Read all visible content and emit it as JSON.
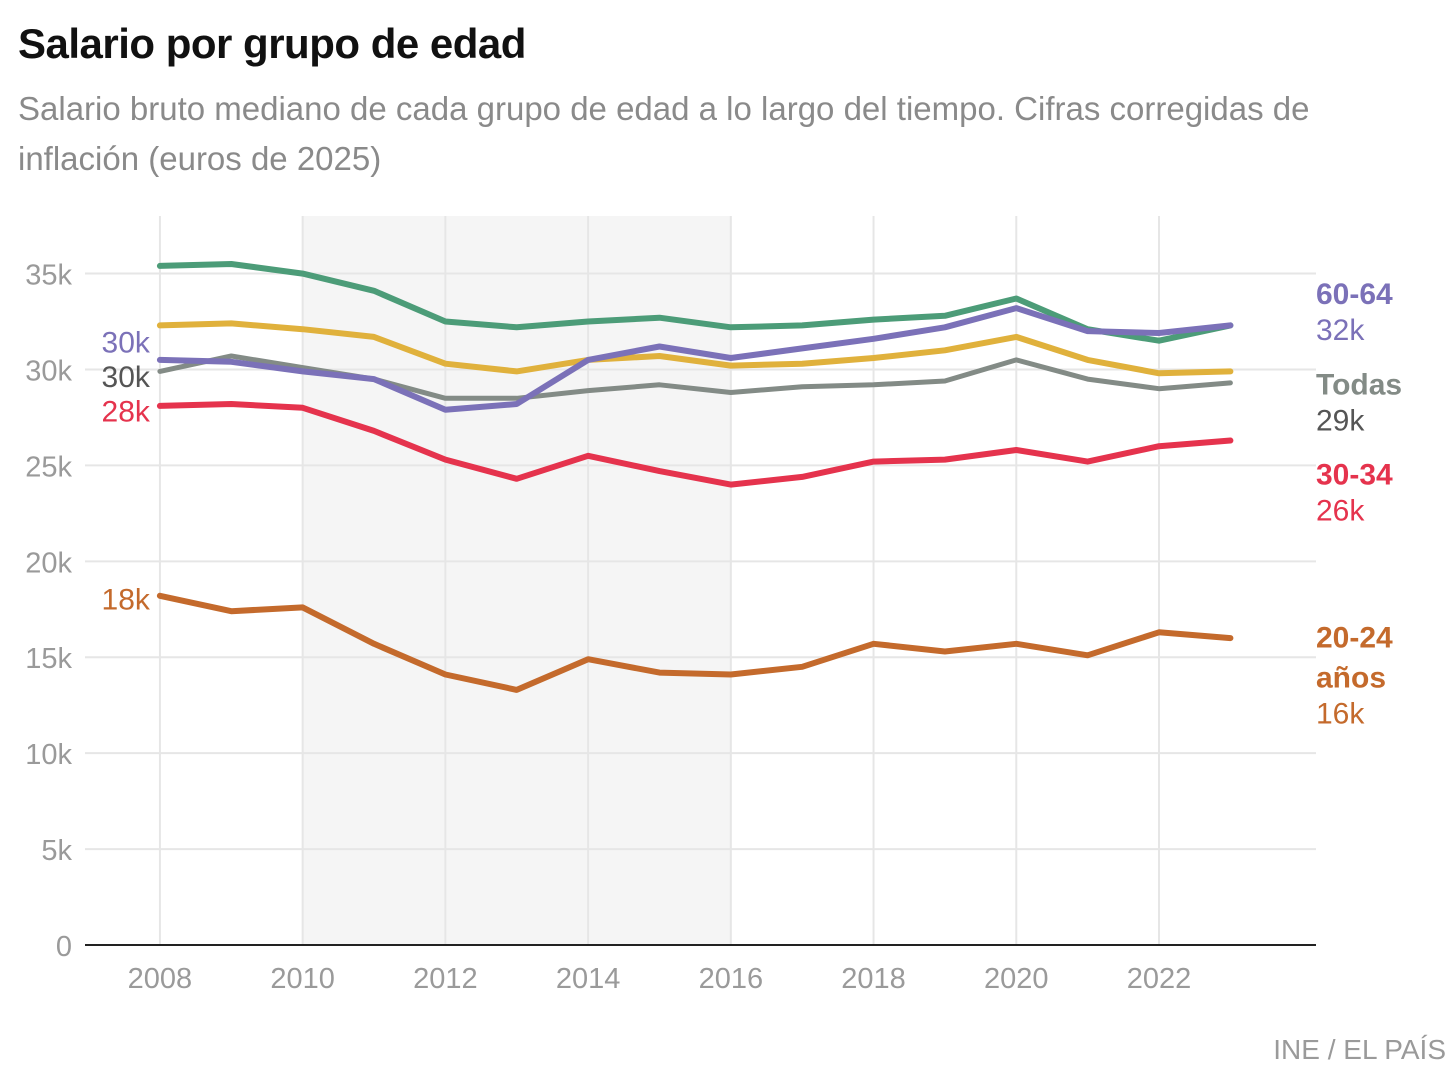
{
  "header": {
    "title": "Salario por grupo de edad",
    "subtitle": "Salario bruto mediano de cada grupo de edad a lo largo del tiempo. Cifras corregidas de inflación (euros de 2025)"
  },
  "source": "INE / EL PAÍS",
  "chart_data": {
    "type": "line",
    "x": [
      2008,
      2009,
      2010,
      2011,
      2012,
      2013,
      2014,
      2015,
      2016,
      2017,
      2018,
      2019,
      2020,
      2021,
      2022,
      2023
    ],
    "xticks": [
      2008,
      2010,
      2012,
      2014,
      2016,
      2018,
      2020,
      2022
    ],
    "xtick_labels": [
      "2008",
      "2010",
      "2012",
      "2014",
      "2016",
      "2018",
      "2020",
      "2022"
    ],
    "xlim": [
      2006.95,
      2024.2
    ],
    "ylim": [
      0,
      38000
    ],
    "yticks": [
      0,
      5000,
      10000,
      15000,
      20000,
      25000,
      30000,
      35000
    ],
    "ytick_labels": [
      "0",
      "5k",
      "10k",
      "15k",
      "20k",
      "25k",
      "30k",
      "35k"
    ],
    "shaded_range": [
      2010,
      2016
    ],
    "grid": true,
    "series": [
      {
        "name": "Todas",
        "color": "#838b86",
        "width": 5,
        "values": [
          29900,
          30700,
          30100,
          29500,
          28500,
          28500,
          28900,
          29200,
          28800,
          29100,
          29200,
          29400,
          30500,
          29500,
          29000,
          29300
        ],
        "start_label": "30k",
        "end_label": "29k"
      },
      {
        "name": "",
        "color": "#e0b13c",
        "width": 6,
        "values": [
          32300,
          32400,
          32100,
          31700,
          30300,
          29900,
          30500,
          30700,
          30200,
          30300,
          30600,
          31000,
          31700,
          30500,
          29800,
          29900
        ]
      },
      {
        "name": "",
        "color": "#4c9c78",
        "width": 6,
        "values": [
          35400,
          35500,
          35000,
          34100,
          32500,
          32200,
          32500,
          32700,
          32200,
          32300,
          32600,
          32800,
          33700,
          32100,
          31500,
          32300
        ]
      },
      {
        "name": "60-64",
        "color": "#7b71b8",
        "width": 6,
        "values": [
          30500,
          30400,
          29900,
          29500,
          27900,
          28200,
          30500,
          31200,
          30600,
          31100,
          31600,
          32200,
          33200,
          32000,
          31900,
          32300
        ],
        "start_label": "30k",
        "end_label": "32k"
      },
      {
        "name": "30-34",
        "color": "#e5334d",
        "width": 6,
        "values": [
          28100,
          28200,
          28000,
          26800,
          25300,
          24300,
          25500,
          24700,
          24000,
          24400,
          25200,
          25300,
          25800,
          25200,
          26000,
          26300
        ],
        "start_label": "28k",
        "end_label": "26k"
      },
      {
        "name": "20-24 años",
        "color": "#c46a2c",
        "width": 6,
        "values": [
          18200,
          17400,
          17600,
          15700,
          14100,
          13300,
          14900,
          14200,
          14100,
          14500,
          15700,
          15300,
          15700,
          15100,
          16300,
          16000
        ],
        "start_label": "18k",
        "end_label": "16k"
      }
    ],
    "end_labels": [
      {
        "series": "60-64",
        "lines": [
          "60-64"
        ],
        "value": "32k",
        "color": "#7b71b8",
        "value_color": "#7b71b8",
        "y_value": 33400
      },
      {
        "series": "Todas",
        "lines": [
          "Todas"
        ],
        "value": "29k",
        "color": "#838b86",
        "value_color": "#555555",
        "y_value": 28700
      },
      {
        "series": "30-34",
        "lines": [
          "30-34"
        ],
        "value": "26k",
        "color": "#e5334d",
        "value_color": "#e5334d",
        "y_value": 24000
      },
      {
        "series": "20-24 años",
        "lines": [
          "20-24",
          "años"
        ],
        "value": "16k",
        "color": "#c46a2c",
        "value_color": "#c46a2c",
        "y_value": 15500
      }
    ],
    "start_labels": [
      {
        "text": "30k",
        "color": "#7b71b8",
        "y_value": 31400
      },
      {
        "text": "30k",
        "color": "#555555",
        "y_value": 29600
      },
      {
        "text": "28k",
        "color": "#e5334d",
        "y_value": 27800
      },
      {
        "text": "18k",
        "color": "#c46a2c",
        "y_value": 18000
      }
    ]
  }
}
